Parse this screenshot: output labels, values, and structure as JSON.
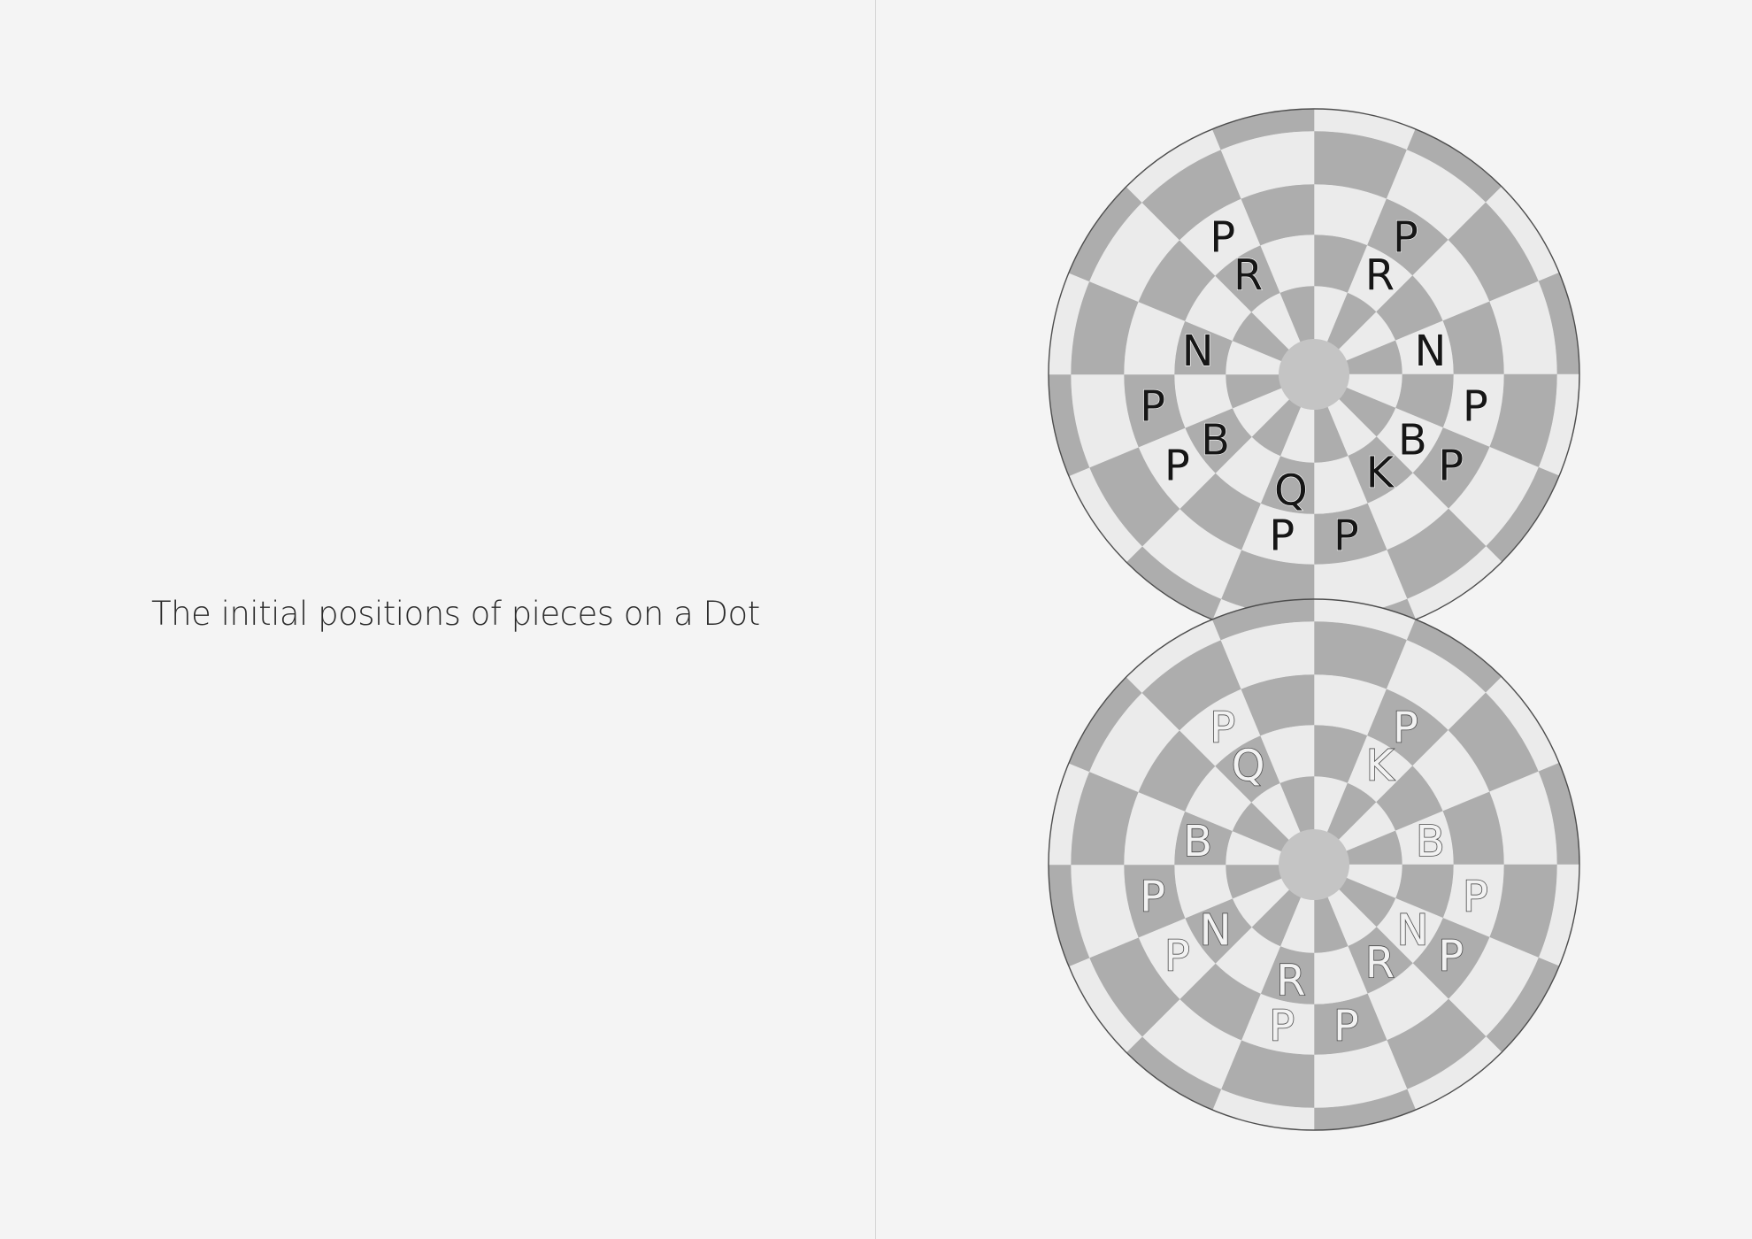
{
  "caption": "The initial positions of pieces on a Dot",
  "colors": {
    "background": "#f4f4f4",
    "light_square": "#ebebeb",
    "dark_square": "#adadad",
    "center_disc": "#c4c4c4",
    "outline": "#4d4d4d"
  },
  "boards": [
    {
      "name": "top-dot",
      "piece_color": "black",
      "pieces": [
        {
          "letter": "P",
          "ring": 3,
          "sector": 14
        },
        {
          "letter": "P",
          "ring": 3,
          "sector": 1
        },
        {
          "letter": "P",
          "ring": 3,
          "sector": 11
        },
        {
          "letter": "P",
          "ring": 3,
          "sector": 4
        },
        {
          "letter": "P",
          "ring": 3,
          "sector": 10
        },
        {
          "letter": "P",
          "ring": 3,
          "sector": 5
        },
        {
          "letter": "P",
          "ring": 3,
          "sector": 7
        },
        {
          "letter": "P",
          "ring": 3,
          "sector": 8
        },
        {
          "letter": "R",
          "ring": 2,
          "sector": 14
        },
        {
          "letter": "R",
          "ring": 2,
          "sector": 1
        },
        {
          "letter": "N",
          "ring": 2,
          "sector": 12
        },
        {
          "letter": "N",
          "ring": 2,
          "sector": 3
        },
        {
          "letter": "B",
          "ring": 2,
          "sector": 10
        },
        {
          "letter": "B",
          "ring": 2,
          "sector": 5
        },
        {
          "letter": "Q",
          "ring": 2,
          "sector": 8
        },
        {
          "letter": "K",
          "ring": 2,
          "sector": 6
        }
      ]
    },
    {
      "name": "bottom-dot",
      "piece_color": "white",
      "pieces": [
        {
          "letter": "P",
          "ring": 3,
          "sector": 14
        },
        {
          "letter": "P",
          "ring": 3,
          "sector": 1
        },
        {
          "letter": "P",
          "ring": 3,
          "sector": 11
        },
        {
          "letter": "P",
          "ring": 3,
          "sector": 4
        },
        {
          "letter": "P",
          "ring": 3,
          "sector": 10
        },
        {
          "letter": "P",
          "ring": 3,
          "sector": 5
        },
        {
          "letter": "P",
          "ring": 3,
          "sector": 7
        },
        {
          "letter": "P",
          "ring": 3,
          "sector": 8
        },
        {
          "letter": "Q",
          "ring": 2,
          "sector": 14
        },
        {
          "letter": "K",
          "ring": 2,
          "sector": 1
        },
        {
          "letter": "B",
          "ring": 2,
          "sector": 12
        },
        {
          "letter": "B",
          "ring": 2,
          "sector": 3
        },
        {
          "letter": "N",
          "ring": 2,
          "sector": 10
        },
        {
          "letter": "N",
          "ring": 2,
          "sector": 5
        },
        {
          "letter": "R",
          "ring": 2,
          "sector": 8
        },
        {
          "letter": "R",
          "ring": 2,
          "sector": 6
        }
      ]
    }
  ]
}
